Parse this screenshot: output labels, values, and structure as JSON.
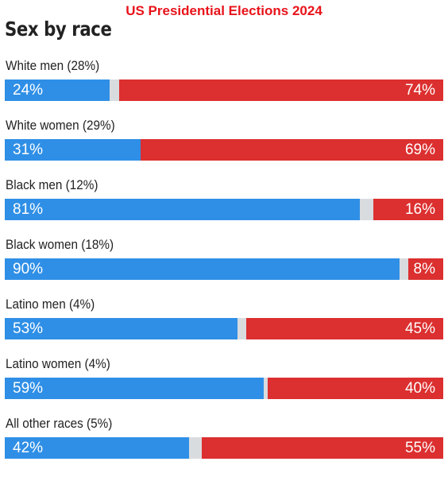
{
  "chart_data": {
    "type": "bar",
    "title": "US Presidential Elections 2024",
    "subtitle": "Sex by race",
    "colors": {
      "dem": "#2f8fe6",
      "rep": "#dc2f2f",
      "other": "#d9dcdf"
    },
    "categories": [
      "White men (28%)",
      "White women (29%)",
      "Black men (12%)",
      "Black women (18%)",
      "Latino men (4%)",
      "Latino women (4%)",
      "All other races (5%)"
    ],
    "series": [
      {
        "values": [
          24,
          31,
          81,
          90,
          53,
          59,
          42
        ],
        "labels": [
          "24%",
          "31%",
          "81%",
          "90%",
          "53%",
          "59%",
          "42%"
        ]
      },
      {
        "values": [
          74,
          69,
          16,
          8,
          45,
          40,
          55
        ],
        "labels": [
          "74%",
          "69%",
          "16%",
          "8%",
          "45%",
          "40%",
          "55%"
        ]
      }
    ],
    "xlim": [
      0,
      100
    ]
  }
}
